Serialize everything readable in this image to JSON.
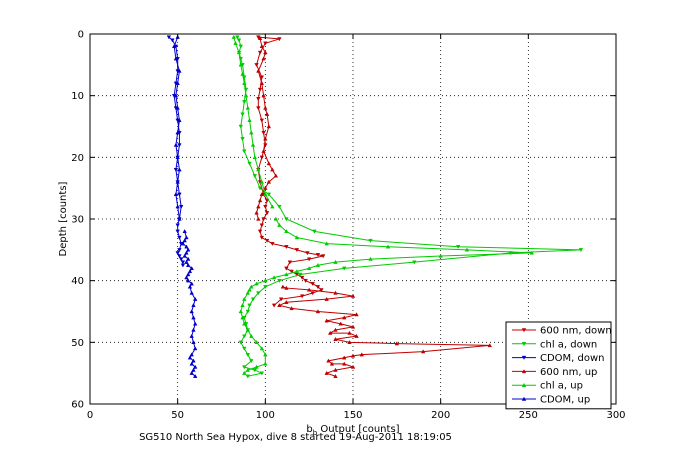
{
  "chart_data": {
    "type": "line",
    "xlabel_main": "b",
    "xlabel_sub": "b",
    "xlabel_rest": " Output [counts]",
    "ylabel": "Depth [counts]",
    "caption": "SG510 North Sea Hypox, dive 8 started 19-Aug-2011 18:19:05",
    "xlim": [
      0,
      300
    ],
    "ylim": [
      0,
      60
    ],
    "y_reversed": true,
    "x_ticks": [
      0,
      50,
      100,
      150,
      200,
      250,
      300
    ],
    "y_ticks": [
      0,
      10,
      20,
      30,
      40,
      50,
      60
    ],
    "grid": true,
    "legend_position": "bottom-right",
    "series": [
      {
        "name": "600 nm, down",
        "color": "#c00000",
        "marker": "triangle-down",
        "x": [
          96,
          108,
          100,
          97,
          95,
          98,
          97,
          96,
          96,
          98,
          99,
          100,
          98,
          96,
          97,
          99,
          101,
          100,
          101,
          99,
          98,
          97,
          98,
          101,
          104,
          112,
          118,
          124,
          130,
          133,
          125,
          114,
          112,
          115,
          118,
          121,
          123,
          127,
          130,
          132,
          127,
          121,
          109,
          105
        ],
        "y": [
          0.5,
          0.8,
          1.5,
          3,
          5,
          7,
          9,
          10.5,
          12,
          14,
          16,
          18,
          20,
          22,
          24,
          26,
          27,
          28,
          29,
          30,
          31,
          32,
          33,
          33.5,
          34,
          34.5,
          35,
          35.5,
          35.8,
          36,
          36.5,
          37,
          38,
          38.5,
          39,
          39.5,
          40,
          40.5,
          41,
          41.5,
          42,
          42.5,
          43,
          44
        ]
      },
      {
        "name": "chl a, down",
        "color": "#00cc00",
        "marker": "triangle-down",
        "x": [
          84,
          85,
          86,
          85,
          86,
          87,
          88,
          89,
          88,
          87,
          86,
          87,
          88,
          91,
          94,
          97,
          102,
          108,
          112,
          128,
          160,
          210,
          280,
          240,
          185,
          145,
          120,
          108,
          100,
          96,
          93,
          91,
          90,
          88,
          89,
          90,
          88,
          86,
          88,
          90,
          92,
          88,
          94,
          98,
          90
        ],
        "y": [
          0.5,
          1,
          2,
          3,
          4,
          5,
          7,
          9,
          11,
          13,
          15,
          17,
          19,
          21,
          23,
          25,
          26,
          28,
          30,
          32,
          33.5,
          34.5,
          35,
          35.5,
          37,
          38,
          39,
          40,
          41,
          42,
          43,
          44,
          45,
          46,
          47,
          48,
          49,
          50,
          51,
          52,
          53,
          54,
          54.5,
          55,
          55.5
        ]
      },
      {
        "name": "CDOM, down",
        "color": "#0000cc",
        "marker": "triangle-down",
        "x": [
          45,
          47,
          49,
          50,
          50,
          49,
          48,
          49,
          50,
          51,
          51,
          50,
          49,
          50,
          51,
          52,
          51,
          50,
          50,
          51,
          52,
          51,
          50,
          51,
          52,
          53,
          53
        ],
        "y": [
          0.5,
          1,
          2,
          4,
          6,
          8,
          10,
          12,
          14,
          16,
          18,
          20,
          22,
          24,
          26,
          28,
          30,
          31,
          32,
          33,
          34,
          35,
          35.5,
          36,
          36.5,
          37,
          37.5
        ]
      },
      {
        "name": "600 nm, up",
        "color": "#c00000",
        "marker": "triangle-up",
        "x": [
          140,
          135,
          140,
          150,
          145,
          138,
          136,
          145,
          150,
          155,
          190,
          228,
          175,
          148,
          140,
          152,
          148,
          137,
          140,
          150,
          143,
          135,
          145,
          152,
          130,
          115,
          108,
          112,
          135,
          150,
          140,
          125,
          112,
          110
        ],
        "y": [
          55.5,
          55,
          54.5,
          54,
          53.5,
          53.5,
          53,
          52.5,
          52.2,
          52,
          51.5,
          50.5,
          50.2,
          50,
          49.5,
          49,
          48.5,
          48.5,
          48,
          47.5,
          47,
          46.5,
          46,
          45.5,
          45,
          44.5,
          44,
          43.5,
          43,
          42.5,
          42,
          41.5,
          41.2,
          41
        ]
      },
      {
        "name": "chl a, up",
        "color": "#00cc00",
        "marker": "triangle-up",
        "x": [
          88,
          90,
          95,
          100,
          100,
          98,
          95,
          92,
          90,
          88,
          87,
          86,
          87,
          88,
          90,
          91,
          92,
          95,
          100,
          105,
          112,
          118,
          125,
          130,
          140,
          160,
          200,
          252,
          215,
          170,
          135,
          118,
          112,
          108,
          106
        ],
        "y": [
          55,
          54.5,
          54,
          53.5,
          52,
          51,
          50,
          49,
          48,
          47,
          46,
          45,
          44,
          43,
          42,
          41.5,
          41,
          40.5,
          40,
          39.5,
          39,
          38.5,
          38,
          37.5,
          37,
          36.5,
          36,
          35.5,
          35,
          34.5,
          34,
          33,
          32,
          31,
          30
        ]
      },
      {
        "name": "CDOM, up",
        "color": "#0000cc",
        "marker": "triangle-up",
        "x": [
          60,
          58,
          59,
          60,
          58,
          59,
          57,
          58,
          60,
          59,
          58,
          59,
          60,
          59,
          58,
          59,
          60,
          58,
          57,
          58,
          56,
          55,
          56,
          57,
          58,
          56,
          55,
          56,
          54,
          55,
          56,
          55,
          53,
          54,
          55,
          54
        ],
        "y": [
          55.5,
          55,
          54.5,
          54,
          53.5,
          53,
          52.5,
          52,
          51,
          50,
          49,
          48,
          47,
          46,
          45,
          44,
          43,
          42,
          41,
          40.5,
          40,
          39.5,
          39,
          38.5,
          38,
          37.5,
          37,
          36.5,
          36,
          35.5,
          35,
          34.5,
          34,
          33.5,
          33,
          32
        ]
      },
      {
        "name": "",
        "color": "#c00000",
        "marker": "triangle-up",
        "x": [
          97,
          98,
          100,
          99,
          96,
          98,
          99,
          100,
          101,
          102,
          100,
          99,
          102,
          104,
          106,
          102,
          100,
          98,
          97,
          96,
          95,
          96
        ],
        "y": [
          0.7,
          2,
          3,
          4,
          6,
          8,
          10,
          12,
          13,
          15,
          17,
          19,
          21,
          22,
          23,
          24,
          25,
          26,
          27,
          28,
          29,
          30
        ]
      },
      {
        "name": "",
        "color": "#00cc00",
        "marker": "triangle-up",
        "x": [
          82,
          83,
          85,
          86,
          87,
          88,
          89,
          90,
          91,
          92,
          93,
          94,
          96,
          98,
          100,
          104
        ],
        "y": [
          0.5,
          1.5,
          3,
          5,
          6.5,
          8,
          10,
          12,
          14,
          16,
          18,
          20,
          22,
          24,
          26,
          28
        ]
      },
      {
        "name": "",
        "color": "#0000cc",
        "marker": "triangle-up",
        "x": [
          50,
          48,
          49,
          51,
          50,
          49,
          50,
          51,
          50,
          49,
          50,
          51,
          50,
          49,
          50,
          51
        ],
        "y": [
          0.5,
          2,
          4,
          6,
          8,
          10,
          12,
          14,
          16,
          18,
          20,
          22,
          24,
          26,
          28,
          30
        ]
      }
    ]
  }
}
